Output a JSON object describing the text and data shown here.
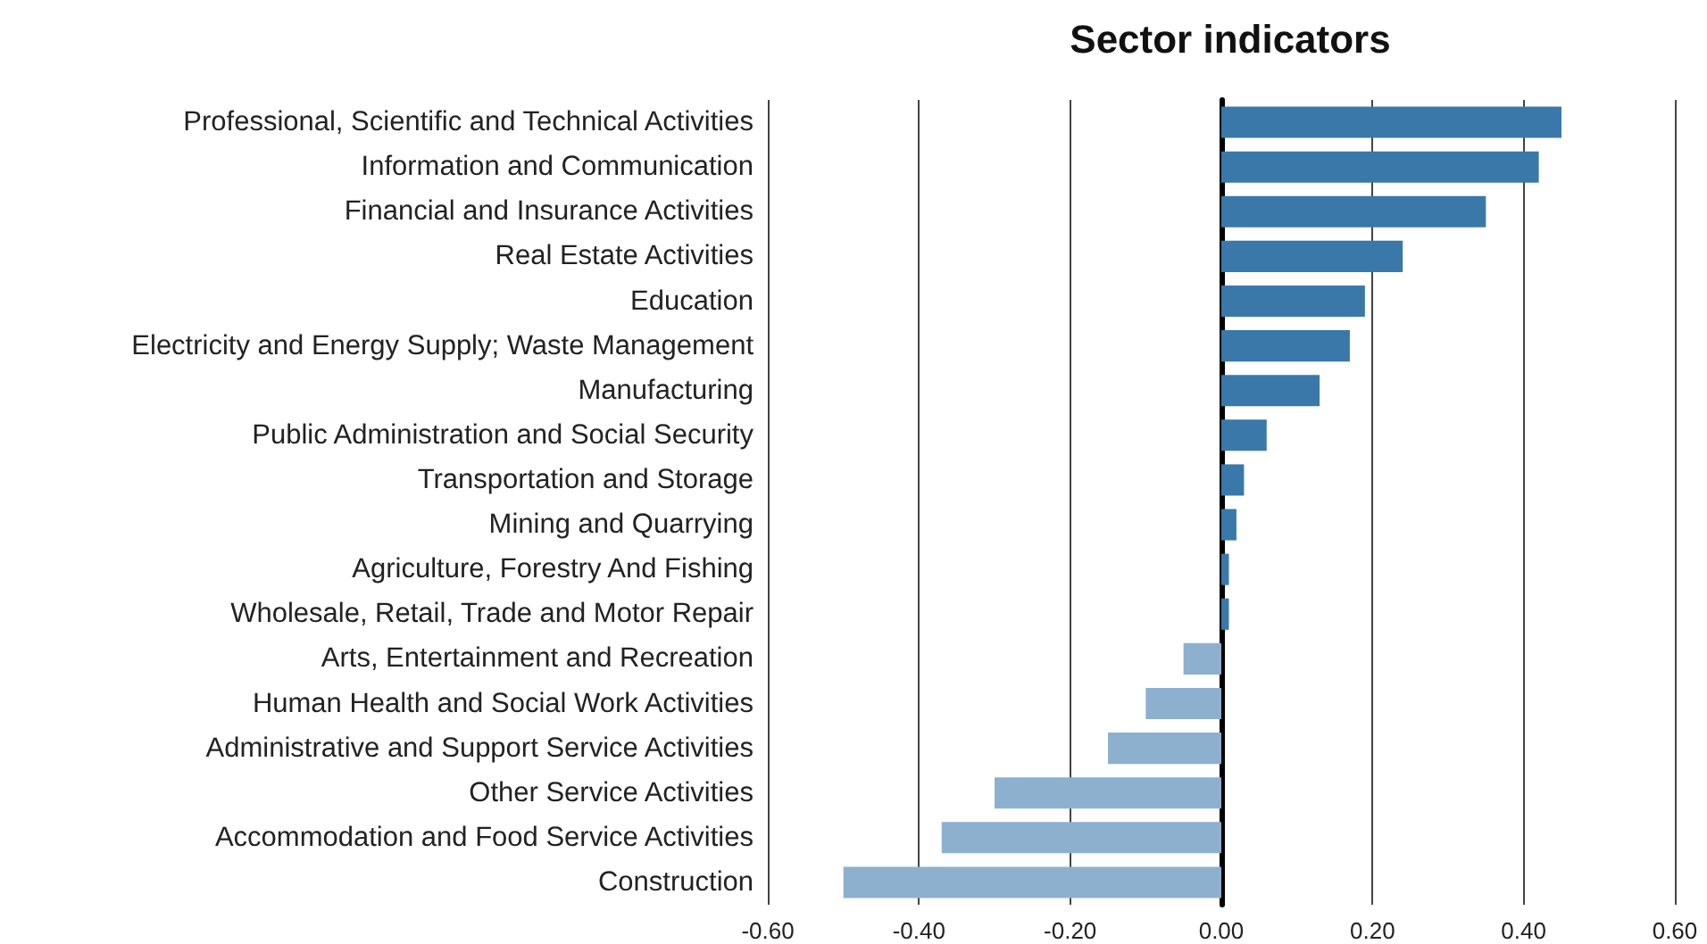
{
  "chart_data": {
    "type": "bar",
    "orientation": "horizontal",
    "title": "Sector indicators",
    "categories": [
      "Professional, Scientific and Technical Activities",
      "Information and Communication",
      "Financial and Insurance Activities",
      "Real Estate Activities",
      "Education",
      "Electricity and Energy Supply; Waste Management",
      "Manufacturing",
      "Public Administration and Social Security",
      "Transportation and Storage",
      "Mining and Quarrying",
      "Agriculture, Forestry And Fishing",
      "Wholesale, Retail, Trade and Motor Repair",
      "Arts, Entertainment and Recreation",
      "Human Health and Social Work Activities",
      "Administrative and Support Service Activities",
      "Other Service Activities",
      "Accommodation and Food Service Activities",
      "Construction"
    ],
    "values": [
      0.45,
      0.42,
      0.35,
      0.24,
      0.19,
      0.17,
      0.13,
      0.06,
      0.03,
      0.02,
      0.01,
      0.01,
      -0.05,
      -0.1,
      -0.15,
      -0.3,
      -0.37,
      -0.5
    ],
    "colors": [
      "#3a78aa",
      "#3a78aa",
      "#3a78aa",
      "#3a78aa",
      "#3a78aa",
      "#3a78aa",
      "#3a78aa",
      "#3a78aa",
      "#3a78aa",
      "#3a78aa",
      "#3a78aa",
      "#3a78aa",
      "#8eb0cf",
      "#8eb0cf",
      "#8eb0cf",
      "#8eb0cf",
      "#8eb0cf",
      "#8eb0cf"
    ],
    "xlim": [
      -0.6,
      0.6
    ],
    "xticks": [
      {
        "value": -0.6,
        "label": "-0.60"
      },
      {
        "value": -0.4,
        "label": "-0.40"
      },
      {
        "value": -0.2,
        "label": "-0.20"
      },
      {
        "value": 0,
        "label": "0.00"
      },
      {
        "value": 0.2,
        "label": "0.20"
      },
      {
        "value": 0.4,
        "label": "0.40"
      },
      {
        "value": 0.6,
        "label": "0.60"
      }
    ],
    "grid": "x"
  }
}
